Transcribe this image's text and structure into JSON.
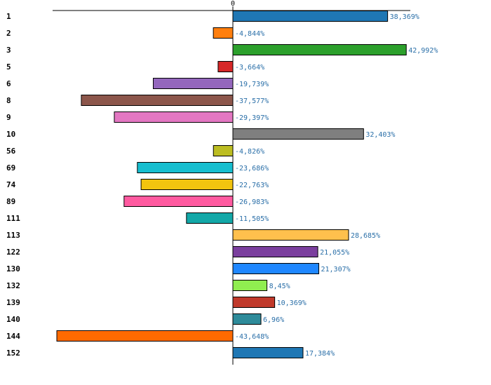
{
  "chart_data": {
    "type": "bar",
    "orientation": "horizontal",
    "title": "",
    "xlabel": "",
    "ylabel": "",
    "xlim": [
      -49,
      47
    ],
    "zero_tick_label": "0",
    "categories": [
      "1",
      "2",
      "3",
      "5",
      "6",
      "8",
      "9",
      "10",
      "56",
      "69",
      "74",
      "89",
      "111",
      "113",
      "122",
      "130",
      "132",
      "139",
      "140",
      "144",
      "152"
    ],
    "values": [
      38.369,
      -4.844,
      42.992,
      -3.664,
      -19.739,
      -37.577,
      -29.397,
      32.403,
      -4.826,
      -23.686,
      -22.763,
      -26.983,
      -11.505,
      28.685,
      21.055,
      21.307,
      8.45,
      10.369,
      6.96,
      -43.648,
      17.384
    ],
    "value_labels": [
      "38,369%",
      "-4,844%",
      "42,992%",
      "-3,664%",
      "-19,739%",
      "-37,577%",
      "-29,397%",
      "32,403%",
      "-4,826%",
      "-23,686%",
      "-22,763%",
      "-26,983%",
      "-11,505%",
      "28,685%",
      "21,055%",
      "21,307%",
      "8,45%",
      "10,369%",
      "6,96%",
      "-43,648%",
      "17,384%"
    ],
    "colors": [
      "#1f77b4",
      "#ff7f0e",
      "#2ca02c",
      "#d62728",
      "#9467bd",
      "#8c564b",
      "#e377c2",
      "#7f7f7f",
      "#bcbd22",
      "#17becf",
      "#f2c40f",
      "#ff5aa0",
      "#13a8a8",
      "#ffc04d",
      "#7b3f9e",
      "#1f87ff",
      "#90ee50",
      "#c0392b",
      "#2e8b9a",
      "#ff6a00",
      "#1f77b4"
    ],
    "grid": false,
    "legend": "none"
  }
}
